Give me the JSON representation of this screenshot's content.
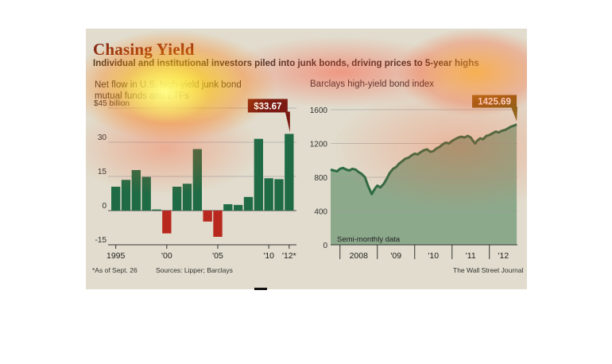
{
  "title": "Chasing Yield",
  "subtitle": "Individual and institutional investors piled into junk bonds, driving prices to 5-year highs",
  "footnote": "*As of Sept. 26",
  "sources": "Sources: Lipper; Barclays",
  "credit": "The Wall Street Journal",
  "colors": {
    "positive_bar": "#1f6b45",
    "negative_bar": "#b8281e",
    "line": "#2c6b45",
    "area": "#8da98c",
    "callout_left": "#7a1a12",
    "callout_right": "#8a6418"
  },
  "chart_data": [
    {
      "type": "bar",
      "title": "Net flow in U.S. high-yield junk bond mutual funds and ETFs",
      "ylabel": "$45 billion",
      "ylim": [
        -15,
        45
      ],
      "y_ticks": [
        {
          "value": 45,
          "label": "$45 billion"
        },
        {
          "value": 30,
          "label": "30"
        },
        {
          "value": 15,
          "label": "15"
        },
        {
          "value": 0,
          "label": "0"
        },
        {
          "value": -15,
          "label": "-15"
        }
      ],
      "x_ticks": [
        {
          "year": 1995,
          "label": "1995"
        },
        {
          "year": 2000,
          "label": "'00"
        },
        {
          "year": 2005,
          "label": "'05"
        },
        {
          "year": 2010,
          "label": "'10"
        },
        {
          "year": 2012,
          "label": "'12*"
        }
      ],
      "years": [
        1995,
        1996,
        1997,
        1998,
        1999,
        2000,
        2001,
        2002,
        2003,
        2004,
        2005,
        2006,
        2007,
        2008,
        2009,
        2010,
        2011,
        2012
      ],
      "values": [
        10.5,
        13.5,
        17.8,
        14.8,
        0.5,
        -10,
        10.5,
        11.8,
        27,
        -4.8,
        -11.5,
        2.8,
        2.5,
        6,
        31.5,
        14.2,
        13.8,
        33.67
      ],
      "callout": {
        "value": 33.67,
        "label": "$33.67"
      }
    },
    {
      "type": "area",
      "title": "Barclays high-yield bond index",
      "ylim": [
        0,
        1600
      ],
      "y_ticks": [
        {
          "value": 1600,
          "label": "1600"
        },
        {
          "value": 1200,
          "label": "1200"
        },
        {
          "value": 800,
          "label": "800"
        },
        {
          "value": 400,
          "label": "400"
        },
        {
          "value": 0,
          "label": "0"
        }
      ],
      "x_ticks": [
        {
          "t": 2008.0,
          "label": "2008"
        },
        {
          "t": 2009.0,
          "label": "'09"
        },
        {
          "t": 2010.0,
          "label": "'10"
        },
        {
          "t": 2011.0,
          "label": "'11"
        },
        {
          "t": 2012.0,
          "label": "'12"
        }
      ],
      "xlim": [
        2007.75,
        2012.75
      ],
      "note": "Semi-monthly data",
      "x": [
        2007.75,
        2007.83,
        2007.92,
        2008.0,
        2008.08,
        2008.17,
        2008.25,
        2008.33,
        2008.42,
        2008.5,
        2008.58,
        2008.67,
        2008.75,
        2008.8,
        2008.85,
        2008.9,
        2008.96,
        2009.0,
        2009.08,
        2009.17,
        2009.25,
        2009.33,
        2009.42,
        2009.5,
        2009.58,
        2009.67,
        2009.75,
        2009.83,
        2009.92,
        2010.0,
        2010.08,
        2010.17,
        2010.25,
        2010.33,
        2010.42,
        2010.5,
        2010.58,
        2010.67,
        2010.75,
        2010.83,
        2010.92,
        2011.0,
        2011.08,
        2011.17,
        2011.25,
        2011.33,
        2011.42,
        2011.5,
        2011.58,
        2011.62,
        2011.67,
        2011.75,
        2011.83,
        2011.92,
        2012.0,
        2012.08,
        2012.17,
        2012.25,
        2012.33,
        2012.42,
        2012.5,
        2012.58,
        2012.65,
        2012.73
      ],
      "y": [
        890,
        880,
        870,
        900,
        910,
        890,
        880,
        900,
        890,
        860,
        840,
        800,
        700,
        650,
        600,
        640,
        680,
        700,
        680,
        720,
        780,
        850,
        900,
        920,
        960,
        990,
        1020,
        1030,
        1060,
        1080,
        1070,
        1100,
        1120,
        1130,
        1100,
        1110,
        1140,
        1160,
        1190,
        1210,
        1200,
        1230,
        1250,
        1270,
        1280,
        1270,
        1290,
        1270,
        1220,
        1200,
        1230,
        1260,
        1250,
        1290,
        1300,
        1320,
        1340,
        1330,
        1350,
        1360,
        1380,
        1400,
        1410,
        1425.69
      ],
      "callout": {
        "value": 1425.69,
        "label": "1425.69"
      }
    }
  ]
}
